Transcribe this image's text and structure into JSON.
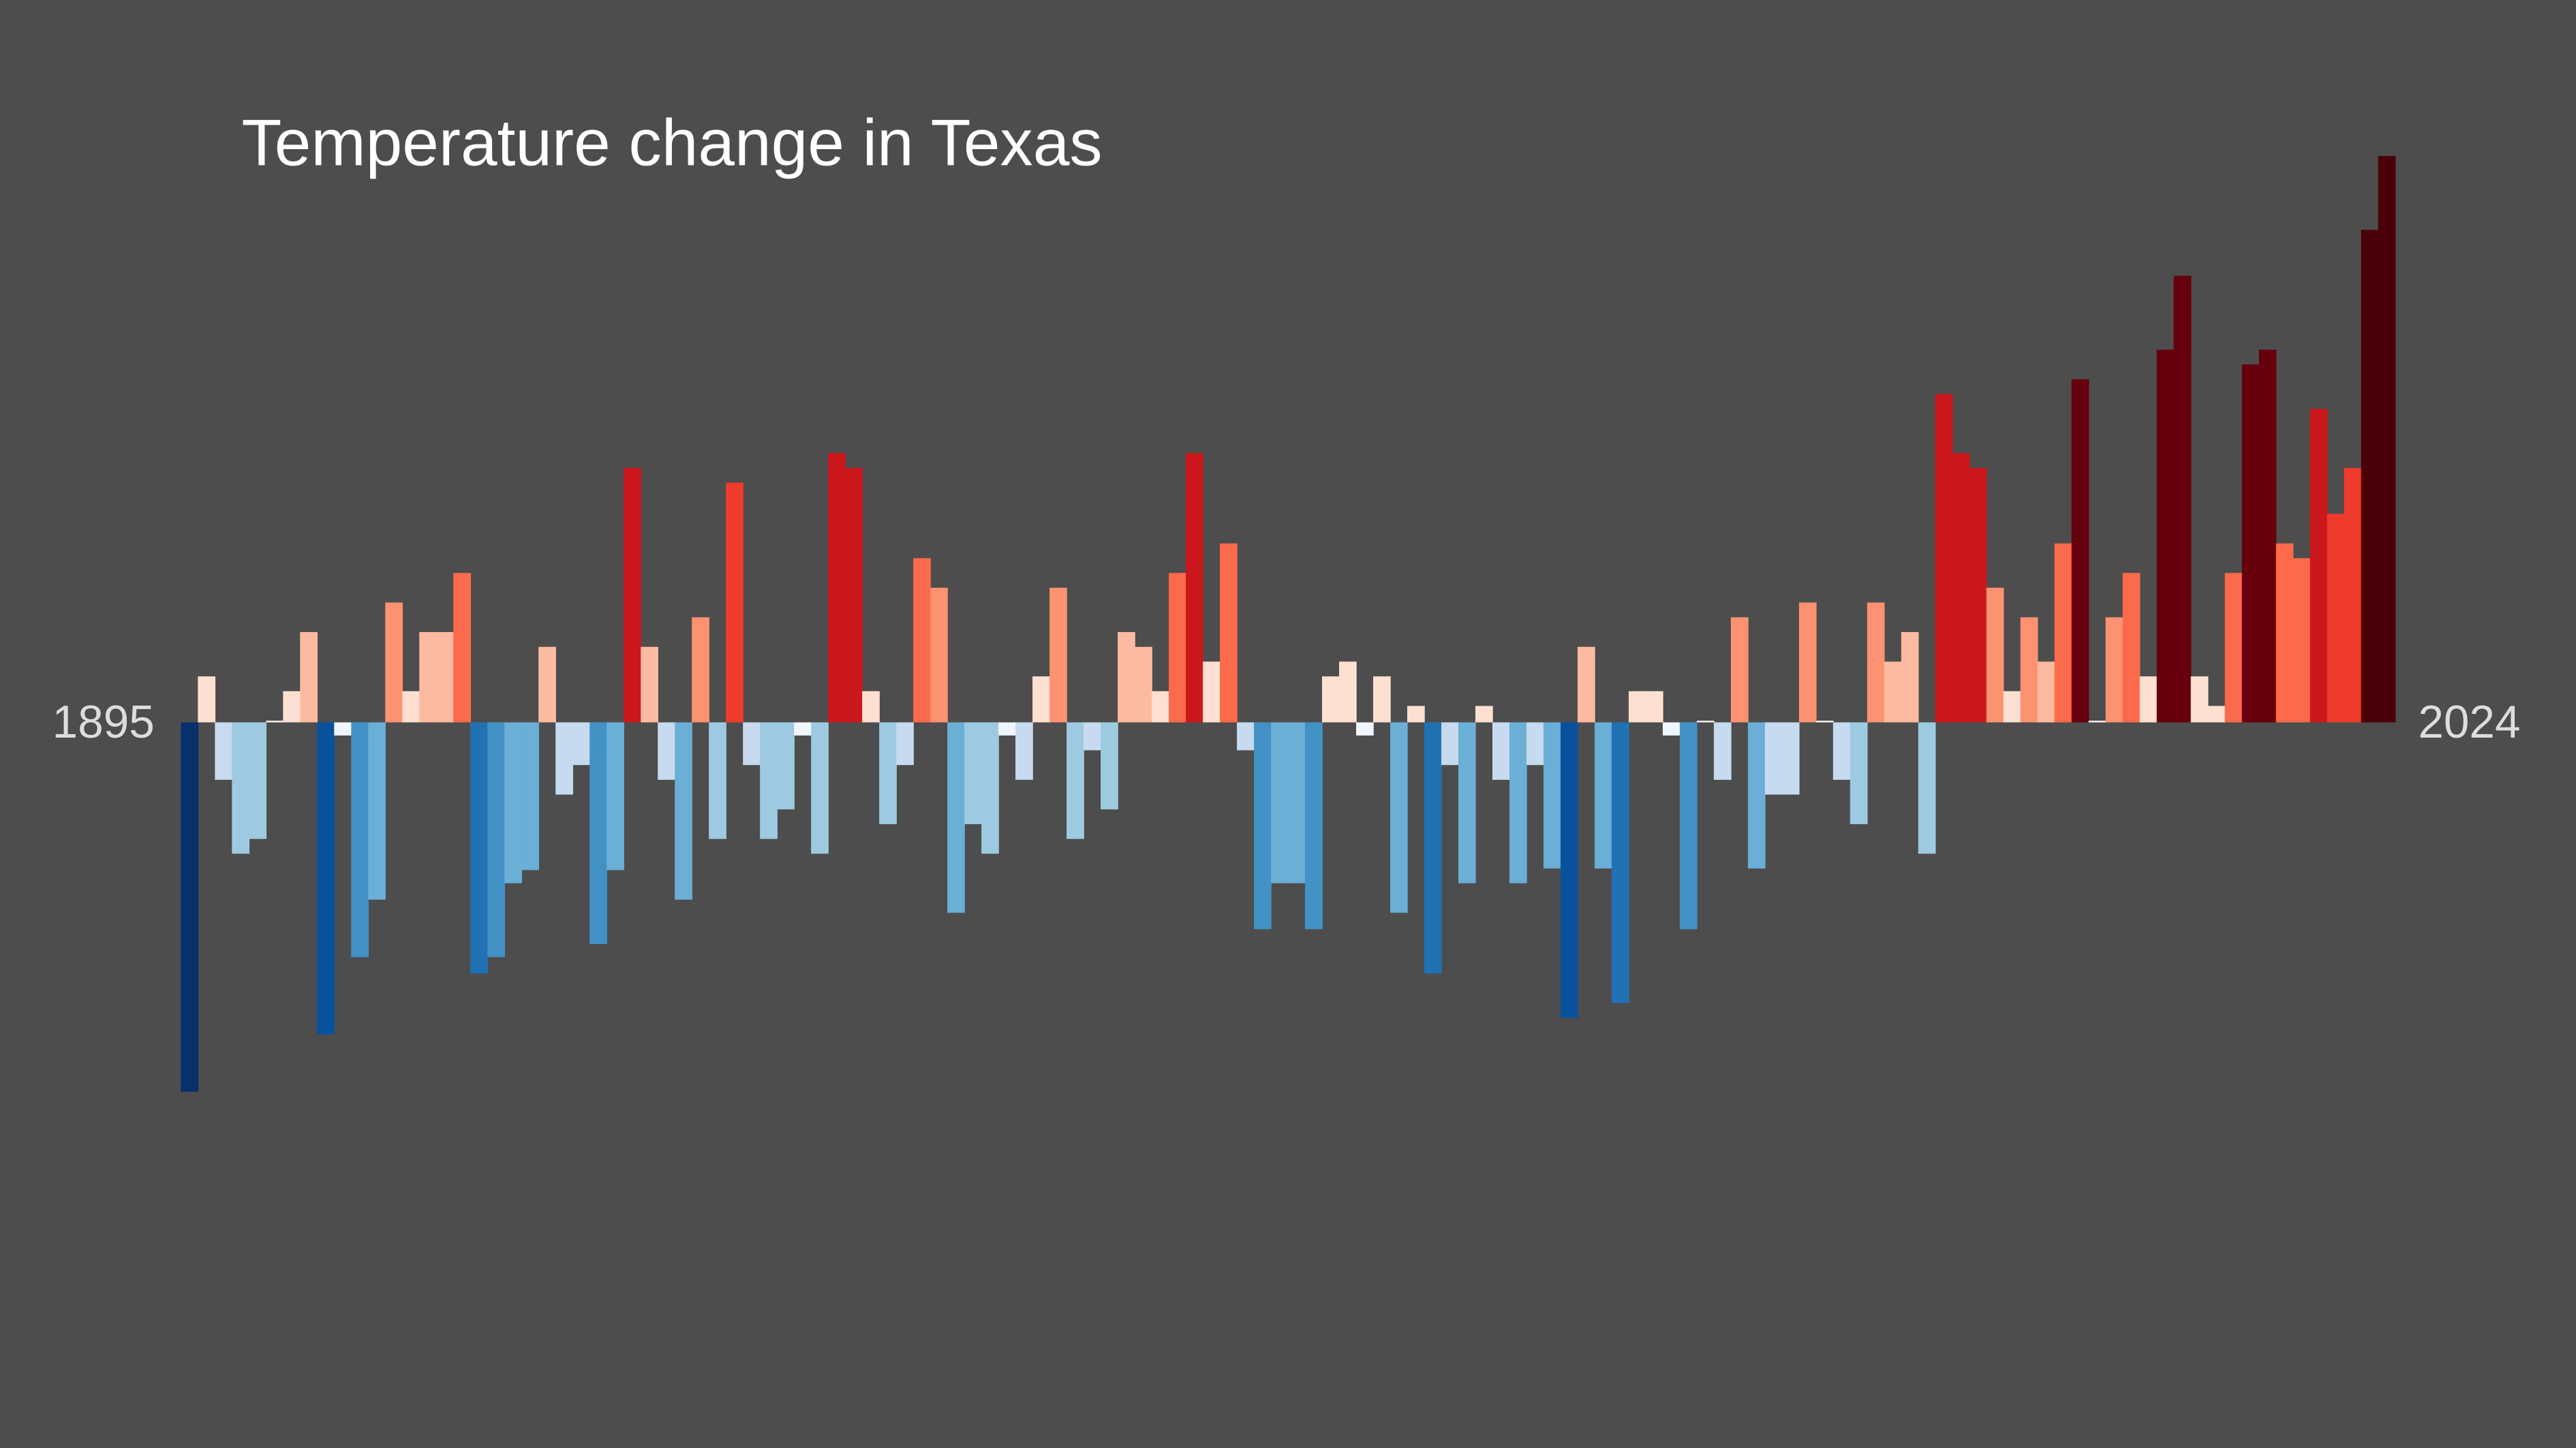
{
  "chart_data": {
    "type": "bar",
    "title": "Temperature change in Texas",
    "categories": [
      "1895",
      null,
      null,
      null,
      null,
      null,
      null,
      null,
      null,
      null,
      null,
      null,
      null,
      null,
      null,
      null,
      null,
      null,
      null,
      null,
      null,
      null,
      null,
      null,
      null,
      null,
      null,
      null,
      null,
      null,
      null,
      null,
      null,
      null,
      null,
      null,
      null,
      null,
      null,
      null,
      null,
      null,
      null,
      null,
      null,
      null,
      null,
      null,
      null,
      null,
      null,
      null,
      null,
      null,
      null,
      null,
      null,
      null,
      null,
      null,
      null,
      null,
      null,
      null,
      null,
      null,
      null,
      null,
      null,
      null,
      null,
      null,
      null,
      null,
      null,
      null,
      null,
      null,
      null,
      null,
      null,
      null,
      null,
      null,
      null,
      null,
      null,
      null,
      null,
      null,
      null,
      null,
      null,
      null,
      null,
      null,
      null,
      null,
      null,
      null,
      null,
      null,
      null,
      null,
      null,
      null,
      null,
      null,
      null,
      null,
      null,
      null,
      null,
      null,
      null,
      null,
      null,
      null,
      null,
      null,
      null,
      null,
      null,
      null,
      null,
      null,
      null,
      null,
      null,
      "2024"
    ],
    "values": [
      -2.25,
      0.28,
      -0.35,
      -0.8,
      -0.71,
      0.01,
      0.19,
      0.55,
      -1.9,
      -0.08,
      -1.43,
      -1.08,
      0.73,
      0.19,
      0.55,
      0.55,
      0.91,
      -1.53,
      -1.43,
      -0.98,
      -0.9,
      0.46,
      -0.44,
      -0.26,
      -1.35,
      -0.9,
      1.55,
      0.46,
      -0.35,
      -1.08,
      0.64,
      -0.71,
      1.46,
      -0.26,
      -0.71,
      -0.53,
      -0.08,
      -0.8,
      1.64,
      1.55,
      0.19,
      -0.62,
      -0.26,
      1.0,
      0.82,
      -1.16,
      -0.62,
      -0.8,
      -0.08,
      -0.35,
      0.28,
      0.82,
      -0.71,
      -0.17,
      -0.53,
      0.55,
      0.46,
      0.19,
      0.91,
      1.64,
      0.37,
      1.09,
      -0.17,
      -1.26,
      -0.98,
      -0.98,
      -1.26,
      0.28,
      0.37,
      -0.08,
      0.28,
      -1.16,
      0.1,
      -1.53,
      -0.26,
      -0.98,
      0.1,
      -0.35,
      -0.98,
      -0.26,
      -0.89,
      -1.8,
      0.46,
      -0.89,
      -1.71,
      0.19,
      0.19,
      -0.08,
      -1.26,
      0.01,
      -0.35,
      0.64,
      -0.89,
      -0.44,
      -0.44,
      0.73,
      0.01,
      -0.35,
      -0.62,
      0.73,
      0.37,
      0.55,
      -0.8,
      2.0,
      1.64,
      1.55,
      0.82,
      0.19,
      0.64,
      0.37,
      1.09,
      2.09,
      0.01,
      0.64,
      0.91,
      0.28,
      2.27,
      2.72,
      0.28,
      0.1,
      0.91,
      2.18,
      2.27,
      1.09,
      1.0,
      1.91,
      1.27,
      1.55,
      3.0,
      3.45
    ],
    "colors": [
      "#08306b",
      "#fee0d2",
      "#c6dbef",
      "#9ecae1",
      "#9ecae1",
      "#fff5f0",
      "#fee0d2",
      "#fcbba1",
      "#08519c",
      "#f0f6fc",
      "#4292c6",
      "#6baed6",
      "#fc9272",
      "#fee0d2",
      "#fcbba1",
      "#fcbba1",
      "#fb6a4a",
      "#2171b5",
      "#4292c6",
      "#6baed6",
      "#6baed6",
      "#fcbba1",
      "#c6dbef",
      "#c6dbef",
      "#4292c6",
      "#6baed6",
      "#cb181d",
      "#fcbba1",
      "#c6dbef",
      "#6baed6",
      "#fc9272",
      "#9ecae1",
      "#ef3b2c",
      "#c6dbef",
      "#9ecae1",
      "#9ecae1",
      "#f0f6fc",
      "#9ecae1",
      "#cb181d",
      "#cb181d",
      "#fee0d2",
      "#9ecae1",
      "#c6dbef",
      "#fb6a4a",
      "#fc9272",
      "#6baed6",
      "#9ecae1",
      "#9ecae1",
      "#f0f6fc",
      "#c6dbef",
      "#fee0d2",
      "#fc9272",
      "#9ecae1",
      "#c6dbef",
      "#9ecae1",
      "#fcbba1",
      "#fcbba1",
      "#fee0d2",
      "#fb6a4a",
      "#cb181d",
      "#fee0d2",
      "#fb6a4a",
      "#c6dbef",
      "#4292c6",
      "#6baed6",
      "#6baed6",
      "#4292c6",
      "#fee0d2",
      "#fee0d2",
      "#f0f6fc",
      "#fee0d2",
      "#6baed6",
      "#fee0d2",
      "#2171b5",
      "#c6dbef",
      "#6baed6",
      "#fee0d2",
      "#c6dbef",
      "#6baed6",
      "#c6dbef",
      "#6baed6",
      "#08519c",
      "#fcbba1",
      "#6baed6",
      "#2171b5",
      "#fee0d2",
      "#fee0d2",
      "#f0f6fc",
      "#4292c6",
      "#fff5f0",
      "#c6dbef",
      "#fc9272",
      "#6baed6",
      "#c6dbef",
      "#c6dbef",
      "#fc9272",
      "#fff5f0",
      "#c6dbef",
      "#9ecae1",
      "#fc9272",
      "#fcbba1",
      "#fcbba1",
      "#9ecae1",
      "#cb181d",
      "#cb181d",
      "#cb181d",
      "#fc9272",
      "#fee0d2",
      "#fc9272",
      "#fcbba1",
      "#fb6a4a",
      "#67000d",
      "#fff5f0",
      "#fc9272",
      "#fb6a4a",
      "#fee0d2",
      "#67000d",
      "#67000d",
      "#fee0d2",
      "#fee0d2",
      "#fb6a4a",
      "#67000d",
      "#67000d",
      "#fb6a4a",
      "#fb6a4a",
      "#cb181d",
      "#ef3b2c",
      "#ef3b2c",
      "#4a0008",
      "#4a0008"
    ]
  }
}
